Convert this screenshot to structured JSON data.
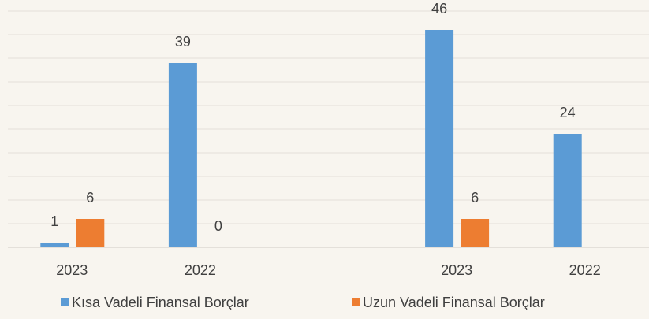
{
  "chart_data": {
    "type": "bar",
    "categories": [
      "2023",
      "2022",
      null,
      "2023",
      "2022"
    ],
    "series": [
      {
        "name": "Kısa Vadeli Finansal Borçlar",
        "color": "#5b9bd5",
        "values": [
          1,
          39,
          null,
          46,
          24
        ]
      },
      {
        "name": "Uzun Vadeli Finansal Borçlar",
        "color": "#ed7d31",
        "values": [
          6,
          0,
          null,
          6,
          null
        ]
      }
    ],
    "ylim": [
      0,
      50
    ],
    "yticks": [
      0,
      5,
      10,
      15,
      20,
      25,
      30,
      35,
      40,
      45,
      50
    ],
    "grid": true,
    "legend": "bottom"
  }
}
